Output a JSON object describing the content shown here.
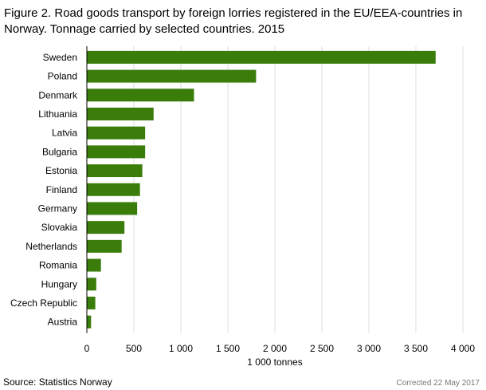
{
  "figure_title": "Figure 2. Road goods transport by foreign lorries  registered in the EU/EEA-countries in Norway. Tonnage carried by selected countries. 2015",
  "source": "Source: Statistics Norway",
  "note": "Corrected 22  May 2017",
  "colors": {
    "bar": "#3a7d0a",
    "grid": "#dddddd",
    "axis": "#000000"
  },
  "chart_data": {
    "type": "bar",
    "orientation": "horizontal",
    "title": "Figure 2. Road goods transport by foreign lorries  registered in the EU/EEA-countries in Norway. Tonnage carried by selected countries. 2015",
    "xlabel": "1 000 tonnes",
    "ylabel": "",
    "xlim": [
      0,
      4000
    ],
    "grid": true,
    "legend": "none",
    "x_ticks": [
      0,
      500,
      1000,
      1500,
      2000,
      2500,
      3000,
      3500,
      4000
    ],
    "x_tick_labels": [
      "0",
      "500",
      "1 000",
      "1 500",
      "2 000",
      "2 500",
      "3 000",
      "3 500",
      "4 000"
    ],
    "categories": [
      "Sweden",
      "Poland",
      "Denmark",
      "Lithuania",
      "Latvia",
      "Bulgaria",
      "Estonia",
      "Finland",
      "Germany",
      "Slovakia",
      "Netherlands",
      "Romania",
      "Hungary",
      "Czech Republic",
      "Austria"
    ],
    "values": [
      3710,
      1800,
      1140,
      710,
      620,
      620,
      590,
      565,
      535,
      400,
      370,
      150,
      100,
      90,
      45
    ]
  }
}
